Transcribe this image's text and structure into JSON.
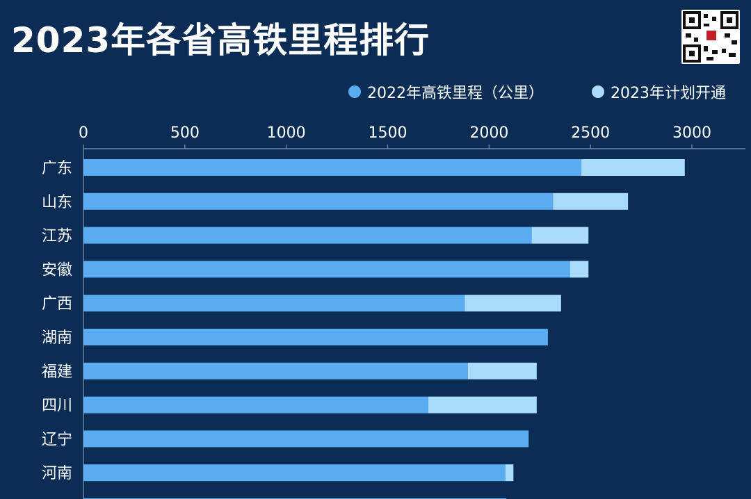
{
  "title": "2023年各省高铁里程排行",
  "chart_data": {
    "type": "bar",
    "orientation": "horizontal",
    "stacked": true,
    "categories": [
      "广东",
      "山东",
      "江苏",
      "安徽",
      "广西",
      "湖南",
      "福建",
      "四川",
      "辽宁",
      "河南",
      ""
    ],
    "series": [
      {
        "name": "2022年高铁里程（公里）",
        "color": "#5aacf0",
        "values": [
          2455,
          2315,
          2210,
          2400,
          1880,
          2290,
          1895,
          1700,
          2195,
          2080,
          2085
        ]
      },
      {
        "name": "2023年计划开通",
        "color": "#a9dcfb",
        "values": [
          510,
          370,
          280,
          90,
          475,
          0,
          340,
          535,
          0,
          40,
          0
        ]
      }
    ],
    "xlim": [
      0,
      3000
    ],
    "xticks": [
      0,
      500,
      1000,
      1500,
      2000,
      2500,
      3000
    ],
    "x_axis_position": "top",
    "legend_position": "top-right",
    "grid": false
  }
}
